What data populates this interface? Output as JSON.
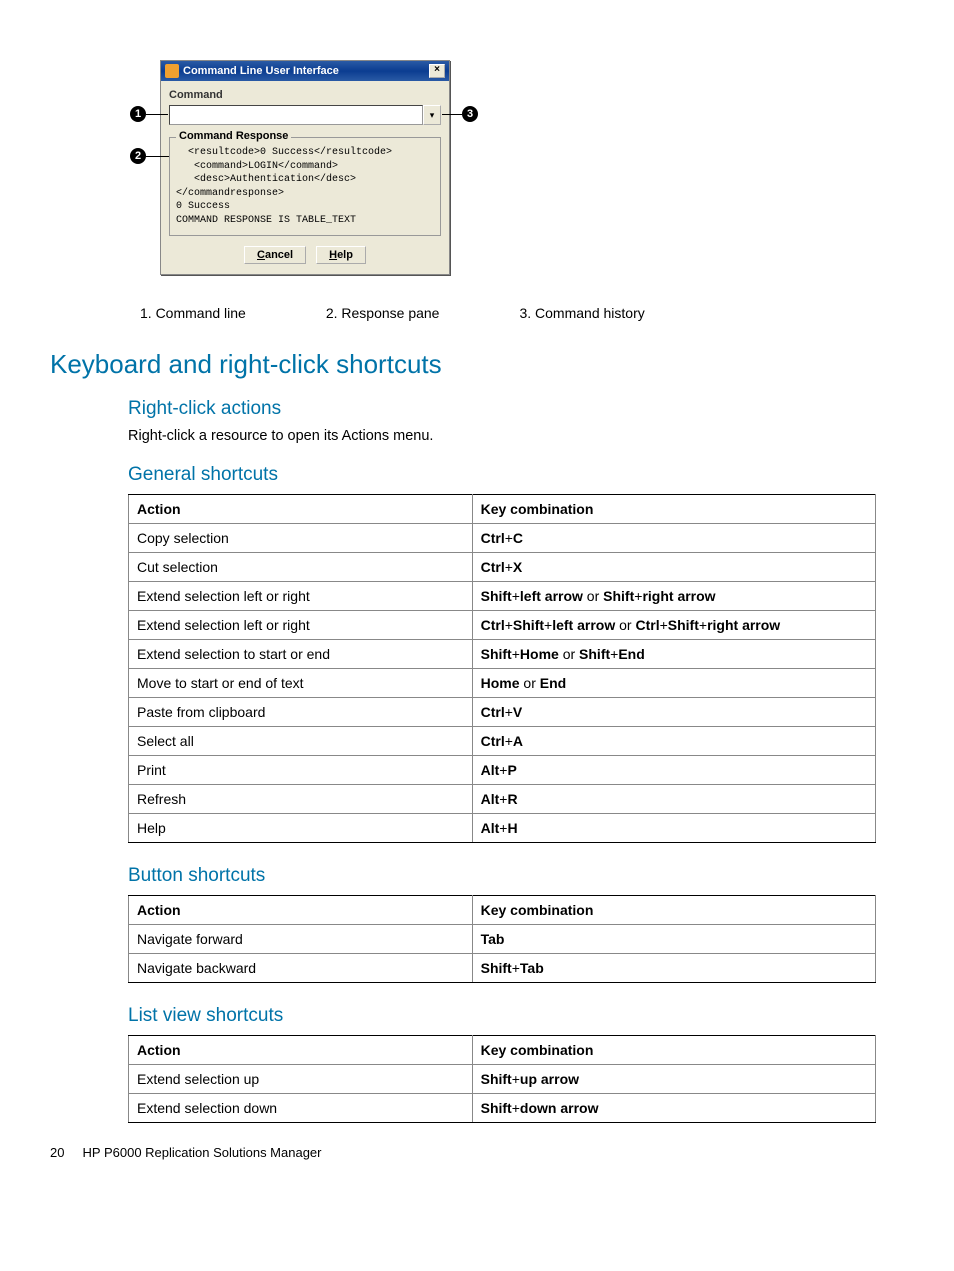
{
  "dialog": {
    "title": "Command Line User Interface",
    "menu_label": "Command",
    "input_value": "",
    "response_legend": "Command Response",
    "response_text": "  <resultcode>0 Success</resultcode>\n   <command>LOGIN</command>\n   <desc>Authentication</desc>\n</commandresponse>\n0 Success\nCOMMAND RESPONSE IS TABLE_TEXT",
    "cancel": "Cancel",
    "help": "Help"
  },
  "callouts": {
    "c1_label": "1",
    "c2_label": "2",
    "c3_label": "3"
  },
  "legend": {
    "l1": "1. Command line",
    "l2": "2. Response pane",
    "l3": "3. Command history"
  },
  "h1": "Keyboard and right-click shortcuts",
  "rightclick": {
    "heading": "Right-click actions",
    "text": "Right-click a resource to open its Actions menu."
  },
  "general": {
    "heading": "General shortcuts",
    "col1": "Action",
    "col2": "Key combination",
    "rows": [
      {
        "a": "Copy selection",
        "k": "<b>Ctrl</b>+<b>C</b>"
      },
      {
        "a": "Cut selection",
        "k": "<b>Ctrl</b>+<b>X</b>"
      },
      {
        "a": "Extend selection left or right",
        "k": "<b>Shift</b>+<b>left arrow</b> or <b>Shift</b>+<b>right arrow</b>"
      },
      {
        "a": "Extend selection left or right",
        "k": "<b>Ctrl</b>+<b>Shift</b>+<b>left arrow</b> or <b>Ctrl</b>+<b>Shift</b>+<b>right arrow</b>"
      },
      {
        "a": "Extend selection to start or end",
        "k": "<b>Shift</b>+<b>Home</b> or <b>Shift</b>+<b>End</b>"
      },
      {
        "a": "Move to start or end of text",
        "k": "<b>Home</b> or <b>End</b>"
      },
      {
        "a": "Paste from clipboard",
        "k": "<b>Ctrl</b>+<b>V</b>"
      },
      {
        "a": "Select all",
        "k": "<b>Ctrl</b>+<b>A</b>"
      },
      {
        "a": "Print",
        "k": "<b>Alt</b>+<b>P</b>"
      },
      {
        "a": "Refresh",
        "k": "<b>Alt</b>+<b>R</b>"
      },
      {
        "a": "Help",
        "k": "<b>Alt</b>+<b>H</b>"
      }
    ]
  },
  "button": {
    "heading": "Button shortcuts",
    "col1": "Action",
    "col2": "Key combination",
    "rows": [
      {
        "a": "Navigate forward",
        "k": "<b>Tab</b>"
      },
      {
        "a": "Navigate backward",
        "k": "<b>Shift</b>+<b>Tab</b>"
      }
    ]
  },
  "listview": {
    "heading": "List view shortcuts",
    "col1": "Action",
    "col2": "Key combination",
    "rows": [
      {
        "a": "Extend selection up",
        "k": "<b>Shift</b>+<b>up arrow</b>"
      },
      {
        "a": "Extend selection down",
        "k": "<b>Shift</b>+<b>down arrow</b>"
      }
    ]
  },
  "footer": {
    "page": "20",
    "title": "HP P6000 Replication Solutions Manager"
  }
}
